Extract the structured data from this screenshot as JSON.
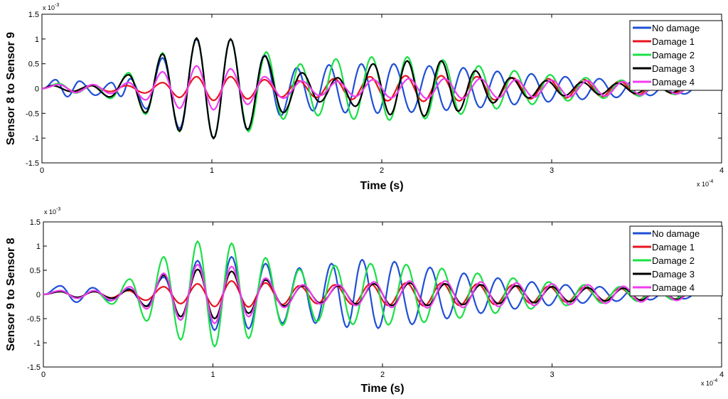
{
  "chart_data": [
    {
      "type": "line",
      "xlabel": "Time (s)",
      "ylabel": "Sensor 8 to Sensor 9",
      "x_multiplier_label": "x 10",
      "x_multiplier_exp": "-4",
      "y_multiplier_label": "x 10",
      "y_multiplier_exp": "-3",
      "xlim": [
        0,
        4
      ],
      "ylim": [
        -1.5,
        1.5
      ],
      "x_ticks": [
        "0",
        "1",
        "2",
        "3",
        "4"
      ],
      "y_ticks": [
        "-1.5",
        "-1",
        "-0.5",
        "0",
        "0.5",
        "1",
        "1.5"
      ],
      "legend_position": "top-right",
      "series": [
        {
          "name": "No damage",
          "color": "#1f4fd6",
          "peak_x": [
            0.08,
            0.22,
            0.41,
            0.52,
            0.71,
            0.91,
            1.11,
            1.31,
            1.5,
            1.69,
            1.88,
            2.07,
            2.28,
            2.48,
            2.68,
            2.88,
            3.08,
            3.28,
            3.48,
            3.68,
            3.88
          ],
          "peak_y": [
            0.18,
            0.15,
            0.12,
            0.2,
            0.62,
            1.0,
            1.0,
            0.68,
            0.42,
            0.48,
            0.5,
            0.5,
            0.46,
            0.42,
            0.35,
            0.3,
            0.24,
            0.2,
            0.16,
            0.12,
            0.1
          ]
        },
        {
          "name": "Damage 1",
          "color": "#e8141e",
          "peak_x": [
            0.1,
            0.3,
            0.5,
            0.71,
            0.91,
            1.11,
            1.31,
            1.51,
            1.72,
            1.93,
            2.14,
            2.35,
            2.56,
            2.77,
            2.98,
            3.19,
            3.4,
            3.61,
            3.82
          ],
          "peak_y": [
            0.08,
            0.06,
            0.06,
            0.12,
            0.24,
            0.24,
            0.18,
            0.16,
            0.2,
            0.24,
            0.26,
            0.26,
            0.24,
            0.22,
            0.2,
            0.18,
            0.15,
            0.12,
            0.1
          ]
        },
        {
          "name": "Damage 2",
          "color": "#19e045",
          "peak_x": [
            0.1,
            0.3,
            0.51,
            0.71,
            0.91,
            1.11,
            1.32,
            1.52,
            1.73,
            1.94,
            2.15,
            2.36,
            2.57,
            2.78,
            2.99,
            3.2,
            3.41,
            3.62,
            3.83
          ],
          "peak_y": [
            0.1,
            0.08,
            0.32,
            0.72,
            1.02,
            1.0,
            0.74,
            0.5,
            0.6,
            0.64,
            0.64,
            0.58,
            0.46,
            0.36,
            0.28,
            0.22,
            0.17,
            0.14,
            0.1
          ]
        },
        {
          "name": "Damage 3",
          "color": "#000000",
          "peak_x": [
            0.06,
            0.29,
            0.51,
            0.71,
            0.91,
            1.11,
            1.31,
            1.53,
            1.74,
            1.95,
            2.15,
            2.35,
            2.55,
            2.76,
            2.97,
            3.18,
            3.39,
            3.6,
            3.81
          ],
          "peak_y": [
            0.06,
            0.06,
            0.28,
            0.7,
            1.02,
            1.0,
            0.66,
            0.32,
            0.22,
            0.5,
            0.56,
            0.56,
            0.36,
            0.22,
            0.16,
            0.13,
            0.11,
            0.09,
            0.08
          ]
        },
        {
          "name": "Damage 4",
          "color": "#f03cf0",
          "peak_x": [
            0.1,
            0.3,
            0.51,
            0.71,
            0.91,
            1.11,
            1.31,
            1.53,
            1.74,
            1.95,
            2.16,
            2.37,
            2.58,
            2.79,
            3.0,
            3.21,
            3.42,
            3.63,
            3.84
          ],
          "peak_y": [
            0.08,
            0.08,
            0.12,
            0.34,
            0.46,
            0.4,
            0.24,
            0.15,
            0.14,
            0.18,
            0.2,
            0.2,
            0.2,
            0.18,
            0.17,
            0.16,
            0.14,
            0.12,
            0.1
          ]
        }
      ]
    },
    {
      "type": "line",
      "xlabel": "Time (s)",
      "ylabel": "Sensor 9 to Sensor 8",
      "x_multiplier_label": "x 10",
      "x_multiplier_exp": "-4",
      "y_multiplier_label": "x 10",
      "y_multiplier_exp": "-3",
      "xlim": [
        0,
        4
      ],
      "ylim": [
        -1.5,
        1.5
      ],
      "x_ticks": [
        "0",
        "1",
        "2",
        "3",
        "4"
      ],
      "y_ticks": [
        "-1.5",
        "-1",
        "-0.5",
        "0",
        "0.5",
        "1",
        "1.5"
      ],
      "legend_position": "top-right",
      "series": [
        {
          "name": "No damage",
          "color": "#1f4fd6",
          "peak_x": [
            0.1,
            0.29,
            0.5,
            0.71,
            0.91,
            1.11,
            1.31,
            1.51,
            1.7,
            1.88,
            2.07,
            2.28,
            2.48,
            2.68,
            2.88,
            3.08,
            3.28,
            3.48,
            3.68,
            3.88
          ],
          "peak_y": [
            0.18,
            0.14,
            0.12,
            0.36,
            0.7,
            0.78,
            0.64,
            0.55,
            0.64,
            0.72,
            0.68,
            0.56,
            0.44,
            0.34,
            0.26,
            0.2,
            0.16,
            0.12,
            0.1,
            0.08
          ]
        },
        {
          "name": "Damage 1",
          "color": "#e8141e",
          "peak_x": [
            0.1,
            0.3,
            0.5,
            0.71,
            0.91,
            1.11,
            1.31,
            1.51,
            1.72,
            1.93,
            2.14,
            2.35,
            2.56,
            2.77,
            2.98,
            3.19,
            3.4,
            3.61,
            3.82
          ],
          "peak_y": [
            0.06,
            0.06,
            0.08,
            0.16,
            0.22,
            0.28,
            0.24,
            0.18,
            0.2,
            0.22,
            0.24,
            0.24,
            0.22,
            0.2,
            0.17,
            0.15,
            0.13,
            0.11,
            0.09
          ]
        },
        {
          "name": "Damage 2",
          "color": "#19e045",
          "peak_x": [
            0.1,
            0.3,
            0.51,
            0.71,
            0.91,
            1.11,
            1.31,
            1.51,
            1.72,
            1.93,
            2.14,
            2.35,
            2.56,
            2.77,
            2.98,
            3.19,
            3.4,
            3.61,
            3.82
          ],
          "peak_y": [
            0.08,
            0.08,
            0.32,
            0.78,
            1.1,
            1.06,
            0.76,
            0.52,
            0.6,
            0.64,
            0.62,
            0.54,
            0.44,
            0.34,
            0.26,
            0.2,
            0.16,
            0.12,
            0.1
          ]
        },
        {
          "name": "Damage 3",
          "color": "#000000",
          "peak_x": [
            0.1,
            0.3,
            0.51,
            0.71,
            0.91,
            1.11,
            1.31,
            1.53,
            1.74,
            1.95,
            2.16,
            2.37,
            2.58,
            2.79,
            3.0,
            3.21,
            3.42,
            3.63,
            3.84
          ],
          "peak_y": [
            0.06,
            0.06,
            0.1,
            0.4,
            0.52,
            0.48,
            0.3,
            0.18,
            0.18,
            0.22,
            0.24,
            0.22,
            0.2,
            0.18,
            0.16,
            0.14,
            0.13,
            0.11,
            0.1
          ]
        },
        {
          "name": "Damage 4",
          "color": "#f03cf0",
          "peak_x": [
            0.1,
            0.3,
            0.51,
            0.71,
            0.91,
            1.11,
            1.31,
            1.53,
            1.74,
            1.95,
            2.16,
            2.37,
            2.58,
            2.79,
            3.0,
            3.21,
            3.42,
            3.63,
            3.84
          ],
          "peak_y": [
            0.08,
            0.08,
            0.16,
            0.44,
            0.62,
            0.58,
            0.34,
            0.2,
            0.2,
            0.26,
            0.28,
            0.28,
            0.26,
            0.24,
            0.22,
            0.2,
            0.17,
            0.14,
            0.11
          ]
        }
      ]
    }
  ]
}
